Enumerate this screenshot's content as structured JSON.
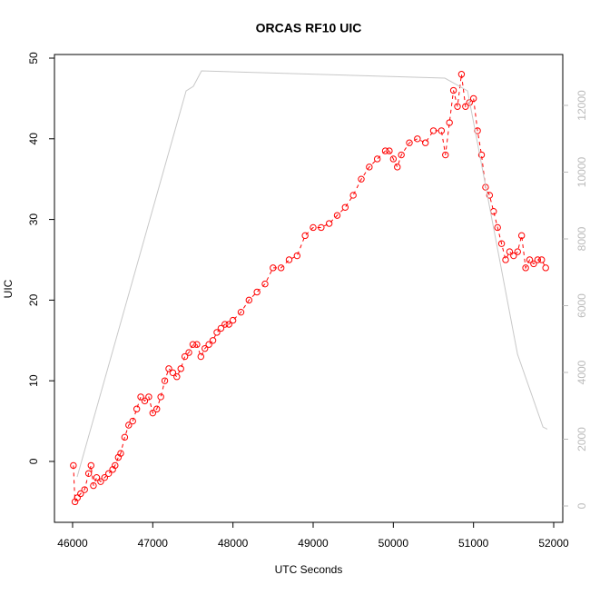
{
  "chart_data": {
    "type": "scatter",
    "title": "ORCAS RF10 UIC",
    "xlabel": "UTC Seconds",
    "ylabel": "UIC",
    "xlim": [
      45774,
      52113
    ],
    "xticks": [
      46000,
      47000,
      48000,
      49000,
      50000,
      51000,
      52000
    ],
    "ylim": [
      -7.55,
      50.45
    ],
    "yticks": [
      0,
      10,
      20,
      30,
      40,
      50
    ],
    "y2lim": [
      -490,
      13524
    ],
    "y2ticks": [
      0,
      2000,
      4000,
      6000,
      8000,
      10000,
      12000
    ],
    "y2color": "#bbbbbb",
    "series": [
      {
        "color": "#ff0000",
        "marker": "circle",
        "line": "dashed",
        "x": [
          46010,
          46030,
          46060,
          46100,
          46150,
          46200,
          46230,
          46260,
          46300,
          46350,
          46400,
          46450,
          46500,
          46530,
          46570,
          46600,
          46650,
          46700,
          46750,
          46800,
          46850,
          46900,
          46950,
          47000,
          47050,
          47100,
          47150,
          47200,
          47250,
          47300,
          47350,
          47400,
          47450,
          47500,
          47550,
          47600,
          47650,
          47700,
          47750,
          47800,
          47850,
          47900,
          47950,
          48000,
          48100,
          48200,
          48300,
          48400,
          48500,
          48600,
          48700,
          48800,
          48900,
          49000,
          49100,
          49200,
          49300,
          49400,
          49500,
          49600,
          49700,
          49800,
          49900,
          49950,
          50000,
          50050,
          50100,
          50200,
          50300,
          50400,
          50500,
          50600,
          50650,
          50700,
          50750,
          50800,
          50850,
          50900,
          50950,
          51000,
          51050,
          51100,
          51150,
          51200,
          51250,
          51300,
          51350,
          51400,
          51450,
          51500,
          51550,
          51600,
          51650,
          51700,
          51750,
          51800,
          51850,
          51900
        ],
        "values": [
          -0.5,
          -5,
          -4.5,
          -4,
          -3.5,
          -1.5,
          -0.5,
          -3,
          -2,
          -2.5,
          -2,
          -1.5,
          -1,
          -0.5,
          0.5,
          1,
          3,
          4.5,
          5,
          6.5,
          8,
          7.5,
          8,
          6,
          6.5,
          8,
          10,
          11.5,
          11,
          10.5,
          11.5,
          13,
          13.5,
          14.5,
          14.5,
          13,
          14,
          14.5,
          15,
          16,
          16.5,
          17,
          17,
          17.5,
          18.5,
          20,
          21,
          22,
          24,
          24,
          25,
          25.5,
          28,
          29,
          29,
          29.5,
          30.5,
          31.5,
          33,
          35,
          36.5,
          37.5,
          38.5,
          38.5,
          37.5,
          36.5,
          38,
          39.5,
          40,
          39.5,
          41,
          41,
          38,
          42,
          46,
          44,
          48,
          44,
          44.5,
          45,
          41,
          38,
          34,
          33,
          31,
          29,
          27,
          25,
          26,
          25.5,
          26,
          28,
          24,
          25,
          24.5,
          25,
          25,
          24
        ]
      },
      {
        "color": "#c8c8c8",
        "axis": "y2",
        "marker": "none",
        "line": "solid",
        "x": [
          46057,
          47416,
          47506,
          47608,
          50643,
          50926,
          51549,
          51866,
          51920
        ],
        "values": [
          870,
          12435,
          12571,
          13034,
          12816,
          12435,
          4544,
          2367,
          2300
        ]
      }
    ]
  }
}
